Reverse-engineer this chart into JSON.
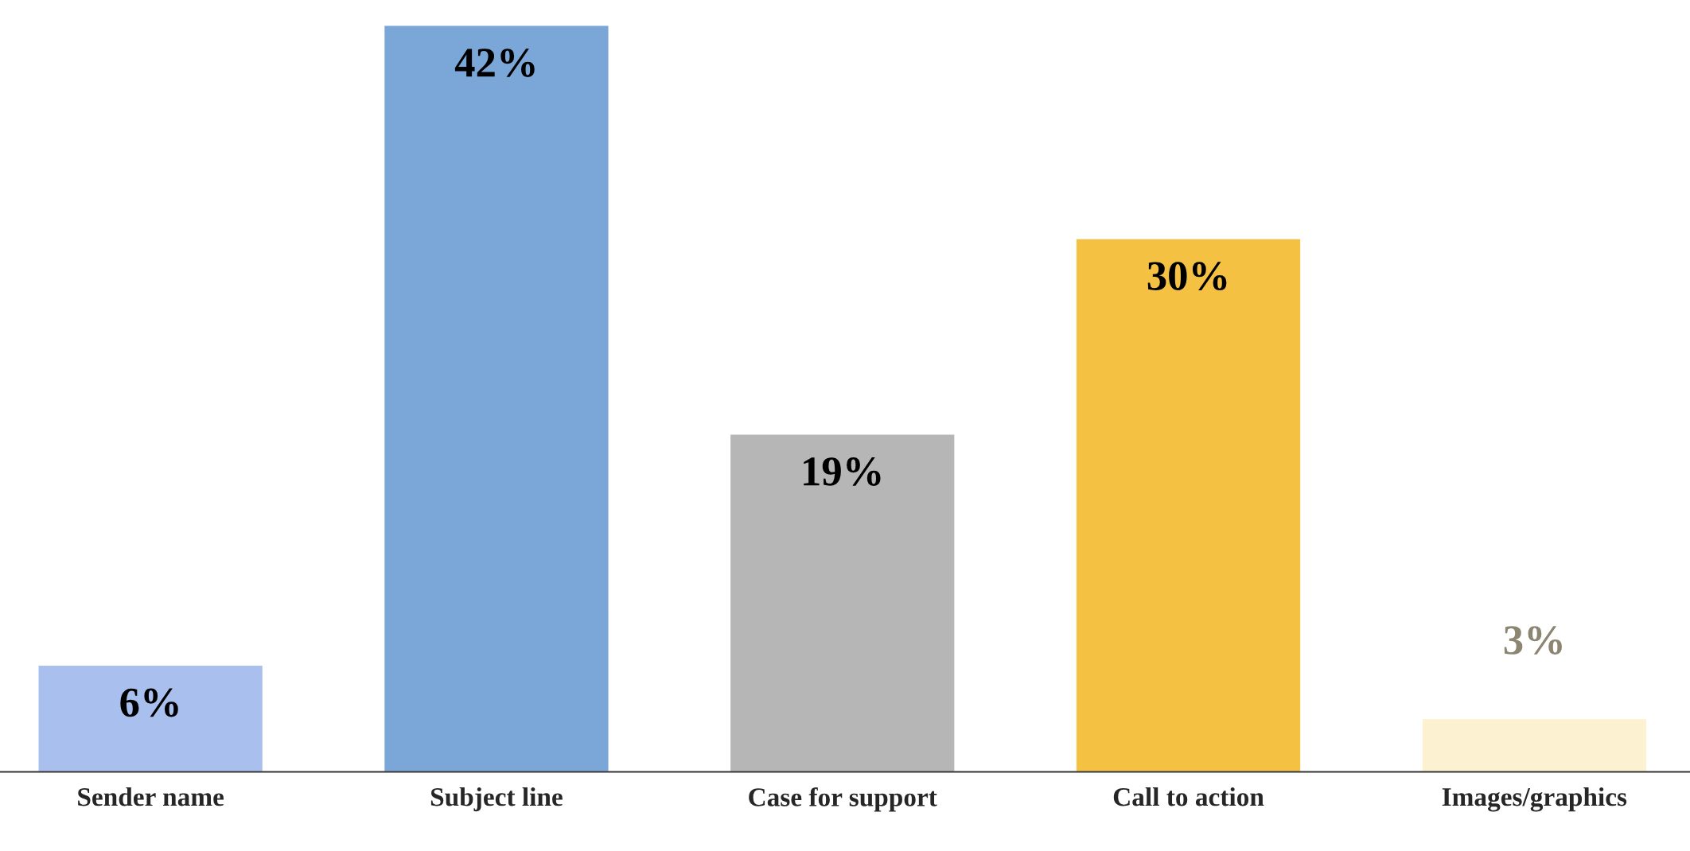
{
  "chart_data": {
    "type": "bar",
    "categories": [
      "Sender name",
      "Subject line",
      "Case for support",
      "Call to action",
      "Images/graphics"
    ],
    "values": [
      6,
      42,
      19,
      30,
      3
    ],
    "colors": [
      "#a9c0ef",
      "#7ba7d8",
      "#b6b6b6",
      "#f4c143",
      "#fcf1d0"
    ],
    "value_labels": [
      "6%",
      "42%",
      "19%",
      "30%",
      "3%"
    ],
    "grid": false,
    "legend": false
  }
}
